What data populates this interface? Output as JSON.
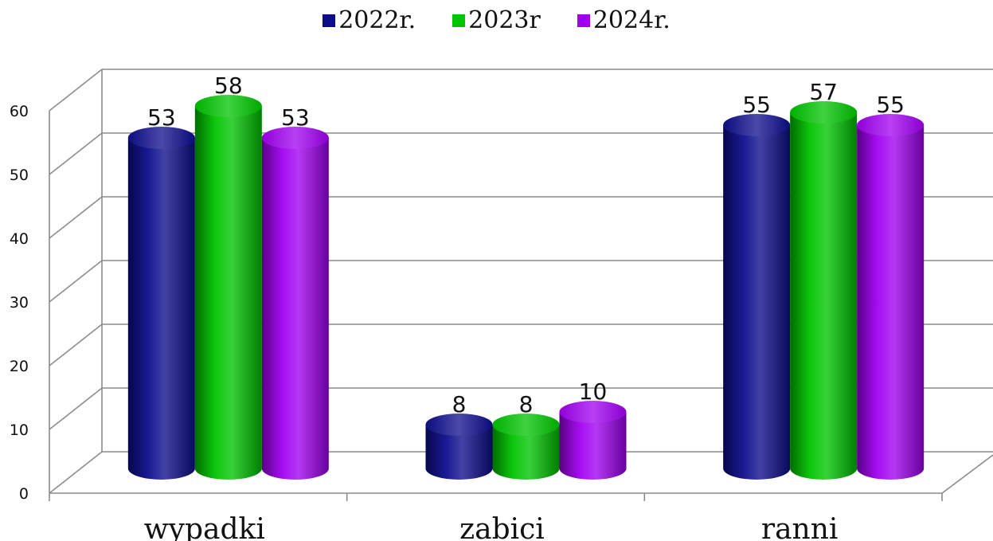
{
  "chart_data": {
    "type": "bar",
    "categories": [
      "wypadki",
      "zabici",
      "ranni"
    ],
    "series": [
      {
        "name": "2022r.",
        "values": [
          53,
          8,
          55
        ],
        "color": "#0d0d8c"
      },
      {
        "name": "2023r",
        "values": [
          58,
          8,
          57
        ],
        "color": "#00c400"
      },
      {
        "name": "2024r.",
        "values": [
          53,
          10,
          55
        ],
        "color": "#a000f0"
      }
    ],
    "ylim": [
      0,
      60
    ],
    "yticks": [
      0,
      10,
      20,
      30,
      40,
      50,
      60
    ],
    "ytick_labels": [
      "0",
      "10",
      "20",
      "30",
      "40",
      "50",
      "60"
    ],
    "grid": true,
    "style": "3d-cylinder",
    "legend": "top-center"
  }
}
